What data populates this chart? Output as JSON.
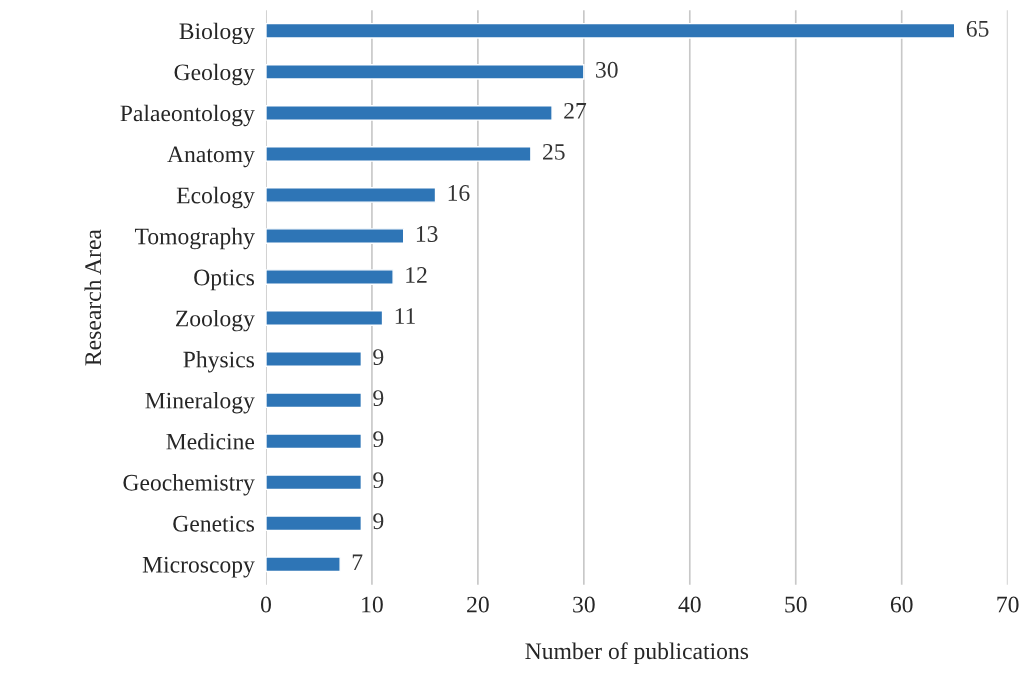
{
  "chart_data": {
    "type": "bar",
    "orientation": "horizontal",
    "xlabel": "Number of publications",
    "ylabel": "Research Area",
    "categories": [
      "Biology",
      "Geology",
      "Palaeontology",
      "Anatomy",
      "Ecology",
      "Tomography",
      "Optics",
      "Zoology",
      "Physics",
      "Mineralogy",
      "Medicine",
      "Geochemistry",
      "Genetics",
      "Microscopy"
    ],
    "values": [
      65,
      30,
      27,
      25,
      16,
      13,
      12,
      11,
      9,
      9,
      9,
      9,
      9,
      7
    ],
    "color": "#2e75b6",
    "xlim": [
      0,
      70
    ],
    "xticks": [
      0,
      10,
      20,
      30,
      40,
      50,
      60,
      70
    ],
    "grid": "x",
    "data_labels": true
  }
}
